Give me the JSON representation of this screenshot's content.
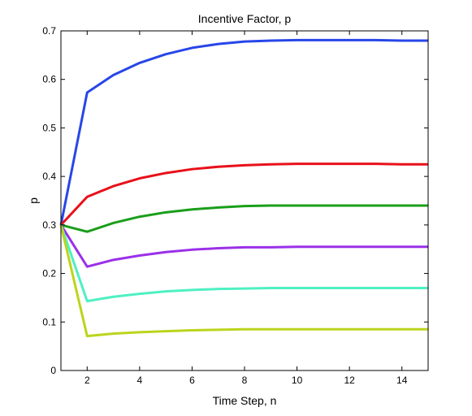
{
  "chart_data": {
    "type": "line",
    "title": "Incentive Factor, p",
    "xlabel": "Time Step, n",
    "ylabel": "p",
    "xlim": [
      1,
      15
    ],
    "ylim": [
      0,
      0.7
    ],
    "xticks": [
      2,
      4,
      6,
      8,
      10,
      12,
      14
    ],
    "yticks": [
      0,
      0.1,
      0.2,
      0.3,
      0.4,
      0.5,
      0.6,
      0.7
    ],
    "grid": false,
    "x": [
      1,
      2,
      3,
      4,
      5,
      6,
      7,
      8,
      9,
      10,
      11,
      12,
      13,
      14,
      15
    ],
    "series": [
      {
        "color": "#2746e8",
        "values": [
          0.3,
          0.573,
          0.609,
          0.634,
          0.652,
          0.665,
          0.673,
          0.678,
          0.68,
          0.681,
          0.681,
          0.681,
          0.681,
          0.68,
          0.68
        ]
      },
      {
        "color": "#e8101a",
        "values": [
          0.3,
          0.358,
          0.38,
          0.396,
          0.407,
          0.415,
          0.42,
          0.423,
          0.425,
          0.426,
          0.426,
          0.426,
          0.426,
          0.425,
          0.425
        ]
      },
      {
        "color": "#1a9e1a",
        "values": [
          0.3,
          0.286,
          0.304,
          0.317,
          0.326,
          0.332,
          0.336,
          0.339,
          0.34,
          0.34,
          0.34,
          0.34,
          0.34,
          0.34,
          0.34
        ]
      },
      {
        "color": "#9b30e8",
        "values": [
          0.3,
          0.214,
          0.228,
          0.237,
          0.244,
          0.249,
          0.252,
          0.254,
          0.254,
          0.255,
          0.255,
          0.255,
          0.255,
          0.255,
          0.255
        ]
      },
      {
        "color": "#4ef0c2",
        "values": [
          0.3,
          0.143,
          0.152,
          0.158,
          0.163,
          0.166,
          0.168,
          0.169,
          0.17,
          0.17,
          0.17,
          0.17,
          0.17,
          0.17,
          0.17
        ]
      },
      {
        "color": "#bcd41c",
        "values": [
          0.3,
          0.071,
          0.076,
          0.079,
          0.081,
          0.083,
          0.084,
          0.085,
          0.085,
          0.085,
          0.085,
          0.085,
          0.085,
          0.085,
          0.085
        ]
      }
    ]
  }
}
